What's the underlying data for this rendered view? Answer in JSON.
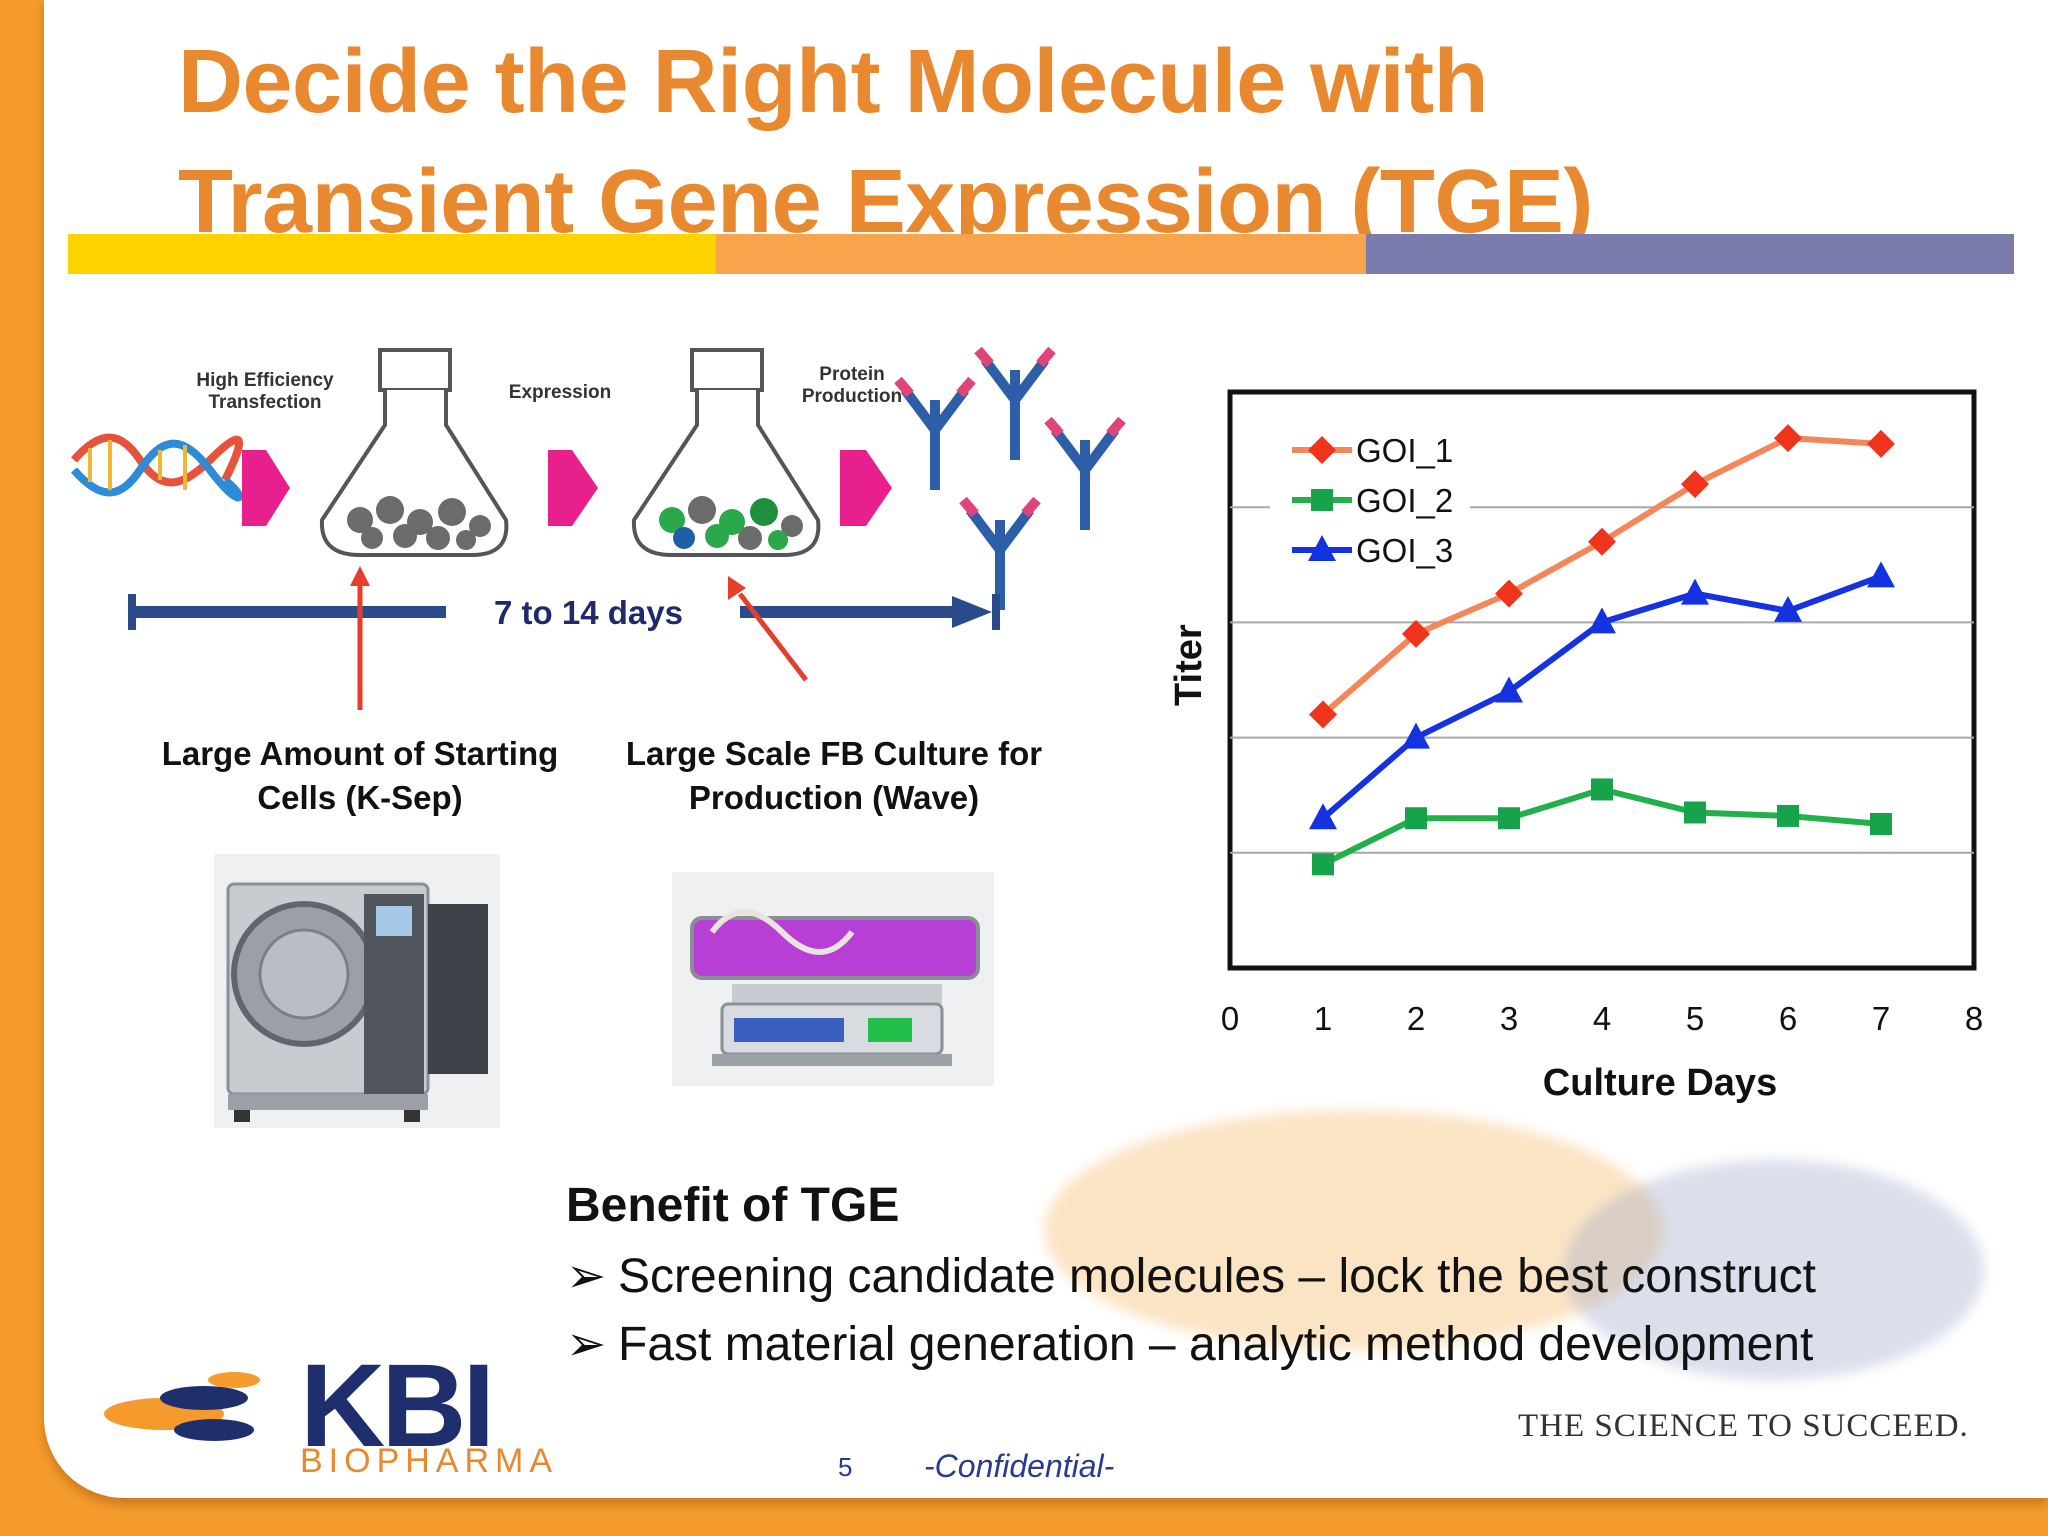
{
  "slide": {
    "title_line1": "Decide the Right Molecule with",
    "title_line2": "Transient Gene Expression (TGE)",
    "colors": {
      "title": "#e8892f",
      "bar_yellow": "#ffd200",
      "bar_orange": "#f8a44c",
      "bar_purple": "#7b7bad",
      "frame_orange": "#f59a2c"
    }
  },
  "process": {
    "step1_label": "High Efficiency Transfection",
    "step2_label": "Expression",
    "step3_label": "Protein Production",
    "timeline_label": "7 to 14 days",
    "caption_left": "Large Amount of Starting Cells (K-Sep)",
    "caption_right": "Large Scale FB Culture for Production (Wave)"
  },
  "chart_data": {
    "type": "line",
    "xlabel": "Culture Days",
    "ylabel": "Titer",
    "xlim": [
      0,
      8
    ],
    "ylim": [
      0,
      5
    ],
    "xticks": [
      "0",
      "1",
      "2",
      "3",
      "4",
      "5",
      "6",
      "7",
      "8"
    ],
    "grid": "horizontal",
    "legend": "top-left",
    "series": [
      {
        "name": "GOI_1",
        "color": "#f4875a",
        "marker": "diamond",
        "marker_color": "#f0341c",
        "x": [
          1,
          2,
          3,
          4,
          5,
          6,
          7
        ],
        "y": [
          2.2,
          2.9,
          3.25,
          3.7,
          4.2,
          4.6,
          4.55
        ]
      },
      {
        "name": "GOI_2",
        "color": "#22b04b",
        "marker": "square",
        "marker_color": "#16a34a",
        "x": [
          1,
          2,
          3,
          4,
          5,
          6,
          7
        ],
        "y": [
          0.9,
          1.3,
          1.3,
          1.55,
          1.35,
          1.32,
          1.25
        ]
      },
      {
        "name": "GOI_3",
        "color": "#1432e0",
        "marker": "triangle",
        "marker_color": "#1432e0",
        "x": [
          1,
          2,
          3,
          4,
          5,
          6,
          7
        ],
        "y": [
          1.3,
          2.0,
          2.4,
          3.0,
          3.25,
          3.1,
          3.4
        ]
      }
    ]
  },
  "benefits": {
    "heading": "Benefit of TGE",
    "items": [
      "Screening candidate molecules – lock the best construct",
      "Fast material generation – analytic method development"
    ]
  },
  "footer": {
    "logo_main": "KBI",
    "logo_sub": "BIOPHARMA",
    "slogan": "THE SCIENCE TO SUCCEED.",
    "page_number": "5",
    "confidential": "-Confidential-"
  }
}
